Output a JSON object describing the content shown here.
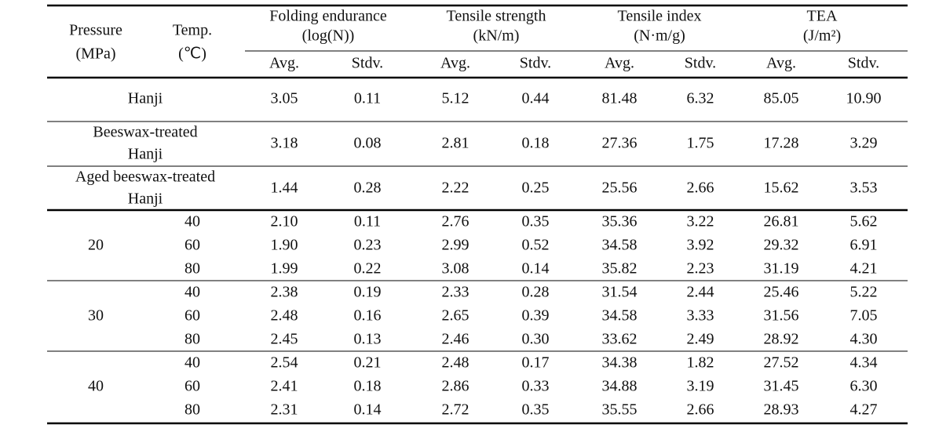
{
  "table": {
    "header": {
      "pressure": [
        "Pressure",
        "(MPa)"
      ],
      "temp": [
        "Temp.",
        "(℃)"
      ],
      "groups": [
        [
          "Folding endurance",
          "(log(N))"
        ],
        [
          "Tensile strength",
          "(kN/m)"
        ],
        [
          "Tensile index",
          "(N·m/g)"
        ],
        [
          "TEA",
          "(J/m²)"
        ]
      ],
      "sub": [
        "Avg.",
        "Stdv.",
        "Avg.",
        "Stdv.",
        "Avg.",
        "Stdv.",
        "Avg.",
        "Stdv."
      ]
    },
    "rows": [
      {
        "label": [
          "Hanji"
        ],
        "values": [
          "3.05",
          "0.11",
          "5.12",
          "0.44",
          "81.48",
          "6.32",
          "85.05",
          "10.90"
        ]
      },
      {
        "label": [
          "Beeswax-treated",
          "Hanji"
        ],
        "values": [
          "3.18",
          "0.08",
          "2.81",
          "0.18",
          "27.36",
          "1.75",
          "17.28",
          "3.29"
        ]
      },
      {
        "label": [
          "Aged beeswax-treated",
          "Hanji"
        ],
        "values": [
          "1.44",
          "0.28",
          "2.22",
          "0.25",
          "25.56",
          "2.66",
          "15.62",
          "3.53"
        ]
      }
    ],
    "groups": [
      {
        "pressure": "20",
        "rows": [
          {
            "temp": "40",
            "values": [
              "2.10",
              "0.11",
              "2.76",
              "0.35",
              "35.36",
              "3.22",
              "26.81",
              "5.62"
            ]
          },
          {
            "temp": "60",
            "values": [
              "1.90",
              "0.23",
              "2.99",
              "0.52",
              "34.58",
              "3.92",
              "29.32",
              "6.91"
            ]
          },
          {
            "temp": "80",
            "values": [
              "1.99",
              "0.22",
              "3.08",
              "0.14",
              "35.82",
              "2.23",
              "31.19",
              "4.21"
            ]
          }
        ]
      },
      {
        "pressure": "30",
        "rows": [
          {
            "temp": "40",
            "values": [
              "2.38",
              "0.19",
              "2.33",
              "0.28",
              "31.54",
              "2.44",
              "25.46",
              "5.22"
            ]
          },
          {
            "temp": "60",
            "values": [
              "2.48",
              "0.16",
              "2.65",
              "0.39",
              "34.58",
              "3.33",
              "31.56",
              "7.05"
            ]
          },
          {
            "temp": "80",
            "values": [
              "2.45",
              "0.13",
              "2.46",
              "0.30",
              "33.62",
              "2.49",
              "28.92",
              "4.30"
            ]
          }
        ]
      },
      {
        "pressure": "40",
        "rows": [
          {
            "temp": "40",
            "values": [
              "2.54",
              "0.21",
              "2.48",
              "0.17",
              "34.38",
              "1.82",
              "27.52",
              "4.34"
            ]
          },
          {
            "temp": "60",
            "values": [
              "2.41",
              "0.18",
              "2.86",
              "0.33",
              "34.88",
              "3.19",
              "31.45",
              "6.30"
            ]
          },
          {
            "temp": "80",
            "values": [
              "2.31",
              "0.14",
              "2.72",
              "0.35",
              "35.55",
              "2.66",
              "28.93",
              "4.27"
            ]
          }
        ]
      }
    ]
  }
}
